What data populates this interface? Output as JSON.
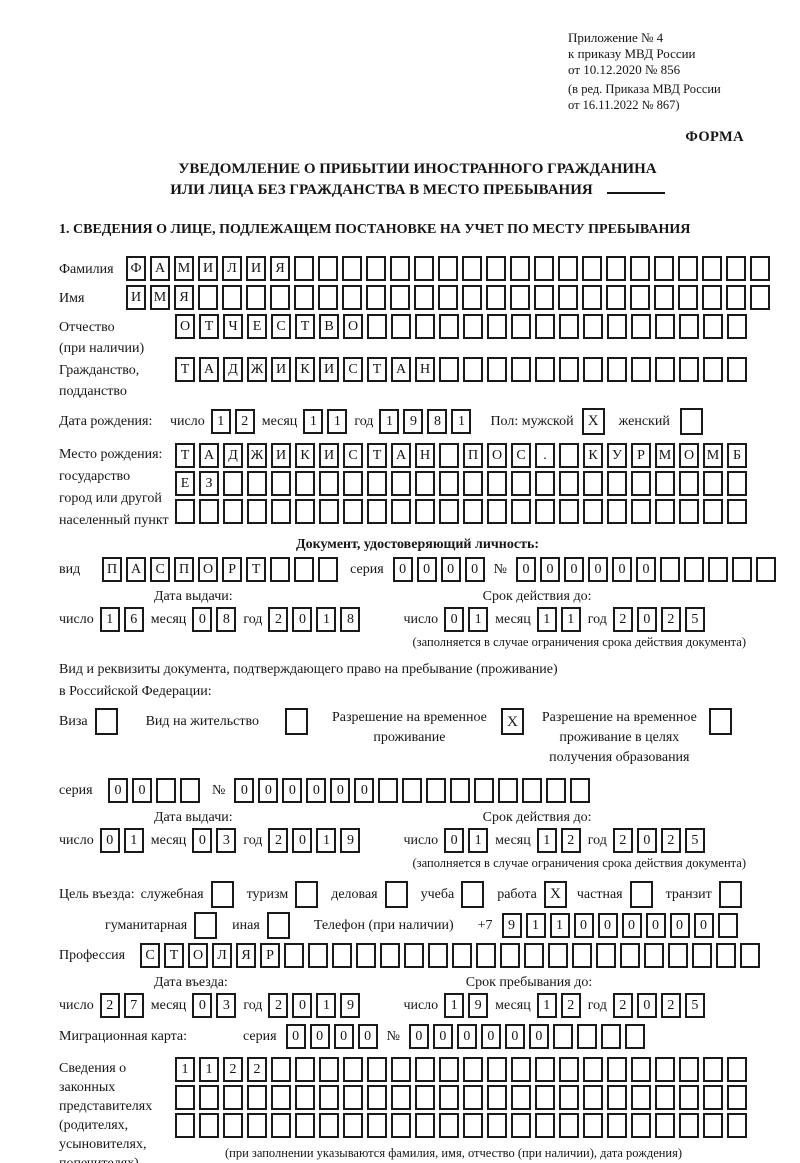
{
  "header": {
    "appendix1": "Приложение № 4",
    "appendix2": "к приказу МВД России",
    "appendix3": "от 10.12.2020 № 856",
    "edition1": "(в ред. Приказа МВД России",
    "edition2": "от 16.11.2022 № 867)",
    "form_label": "ФОРМА"
  },
  "title": {
    "line1": "УВЕДОМЛЕНИЕ О ПРИБЫТИИ ИНОСТРАННОГО ГРАЖДАНИНА",
    "line2": "ИЛИ ЛИЦА БЕЗ ГРАЖДАНСТВА В МЕСТО ПРЕБЫВАНИЯ"
  },
  "section1_heading": "1. СВЕДЕНИЯ О ЛИЦЕ, ПОДЛЕЖАЩЕМ ПОСТАНОВКЕ НА УЧЕТ ПО МЕСТУ ПРЕБЫВАНИЯ",
  "words": {
    "day": "число",
    "month": "месяц",
    "year": "год",
    "series": "серия",
    "number": "№"
  },
  "person": {
    "lastname": {
      "label": "Фамилия",
      "value": "ФАМИЛИЯ",
      "count": 27
    },
    "firstname": {
      "label": "Имя",
      "value": "ИМЯ",
      "count": 27
    },
    "patronymic": {
      "label1": "Отчество",
      "label2": "(при наличии)",
      "value": "ОТЧЕСТВО",
      "count": 24
    },
    "citizenship": {
      "label1": "Гражданство,",
      "label2": "подданство",
      "value": "ТАДЖИКИСТАН",
      "count": 24
    },
    "birthdate": {
      "label": "Дата рождения:",
      "day": "12",
      "month": "11",
      "year": "1981"
    },
    "sex": {
      "label": "Пол: мужской",
      "male_mark": "X",
      "female_label": "женский",
      "female_mark": ""
    },
    "birthplace": {
      "label1": "Место рождения:",
      "label2": "государство",
      "label3": "город или другой",
      "label4": "населенный пункт",
      "row1": {
        "value": "ТАДЖИКИСТАН ПОС. КУРМОМБ",
        "count": 24
      },
      "row2": {
        "value": "ЕЗ",
        "count": 24
      },
      "row3": {
        "value": "",
        "count": 24
      }
    }
  },
  "identity_doc": {
    "heading": "Документ, удостоверяющий личность:",
    "kind_label": "вид",
    "kind": {
      "value": "ПАСПОРТ",
      "count": 10
    },
    "series": {
      "value": "0000",
      "count": 4
    },
    "number": {
      "value": "000000",
      "count": 11
    },
    "issue_title": "Дата выдачи:",
    "issue": {
      "day": "16",
      "month": "08",
      "year": "2018"
    },
    "expiry_title": "Срок действия до:",
    "expiry": {
      "day": "01",
      "month": "11",
      "year": "2025"
    },
    "note": "(заполняется в случае ограничения срока действия документа)"
  },
  "residence_doc": {
    "intro1": "Вид и реквизиты документа, подтверждающего право на пребывание (проживание)",
    "intro2": "в Российской Федерации:",
    "opt_visa": {
      "label": "Виза",
      "mark": ""
    },
    "opt_residence_permit": {
      "label": "Вид на жительство",
      "mark": ""
    },
    "opt_temp_residence": {
      "line1": "Разрешение на временное",
      "line2": "проживание",
      "mark": "X"
    },
    "opt_temp_residence_edu": {
      "line1": "Разрешение на временное",
      "line2": "проживание в целях",
      "line3": "получения образования",
      "mark": ""
    },
    "series": {
      "value": "00",
      "count": 4
    },
    "number": {
      "value": "000000",
      "count": 15
    },
    "issue_title": "Дата выдачи:",
    "issue": {
      "day": "01",
      "month": "03",
      "year": "2019"
    },
    "expiry_title": "Срок действия до:",
    "expiry": {
      "day": "01",
      "month": "12",
      "year": "2025"
    },
    "note": "(заполняется в случае ограничения срока действия документа)"
  },
  "visit": {
    "purpose_label": "Цель въезда:",
    "p_official": {
      "label": "служебная",
      "mark": ""
    },
    "p_tourism": {
      "label": "туризм",
      "mark": ""
    },
    "p_business": {
      "label": "деловая",
      "mark": ""
    },
    "p_study": {
      "label": "учеба",
      "mark": ""
    },
    "p_work": {
      "label": "работа",
      "mark": "X"
    },
    "p_private": {
      "label": "частная",
      "mark": ""
    },
    "p_transit": {
      "label": "транзит",
      "mark": ""
    },
    "p_humanitarian": {
      "label": "гуманитарная",
      "mark": ""
    },
    "p_other": {
      "label": "иная",
      "mark": ""
    },
    "phone_label": "Телефон (при наличии)",
    "phone_prefix": "+7",
    "phone": {
      "value": "911000000",
      "count": 10
    },
    "profession_label": "Профессия",
    "profession": {
      "value": "СТОЛЯР",
      "count": 26
    },
    "entry_title": "Дата въезда:",
    "entry": {
      "day": "27",
      "month": "03",
      "year": "2019"
    },
    "stay_title": "Срок пребывания до:",
    "stay": {
      "day": "19",
      "month": "12",
      "year": "2025"
    }
  },
  "migration_card": {
    "label": "Миграционная карта:",
    "series": {
      "value": "0000",
      "count": 4
    },
    "number": {
      "value": "000000",
      "count": 10
    }
  },
  "legal_reps": {
    "label1": "Сведения о",
    "label2": "законных",
    "label3": "представителях",
    "label4": "(родителях,",
    "label5": "усыновителях,",
    "label6": "попечителях)",
    "row1": {
      "value": "1122",
      "count": 24
    },
    "row2": {
      "value": "",
      "count": 24
    },
    "row3": {
      "value": "",
      "count": 24
    },
    "note": "(при заполнении указываются фамилия, имя, отчество (при наличии), дата рождения)"
  }
}
